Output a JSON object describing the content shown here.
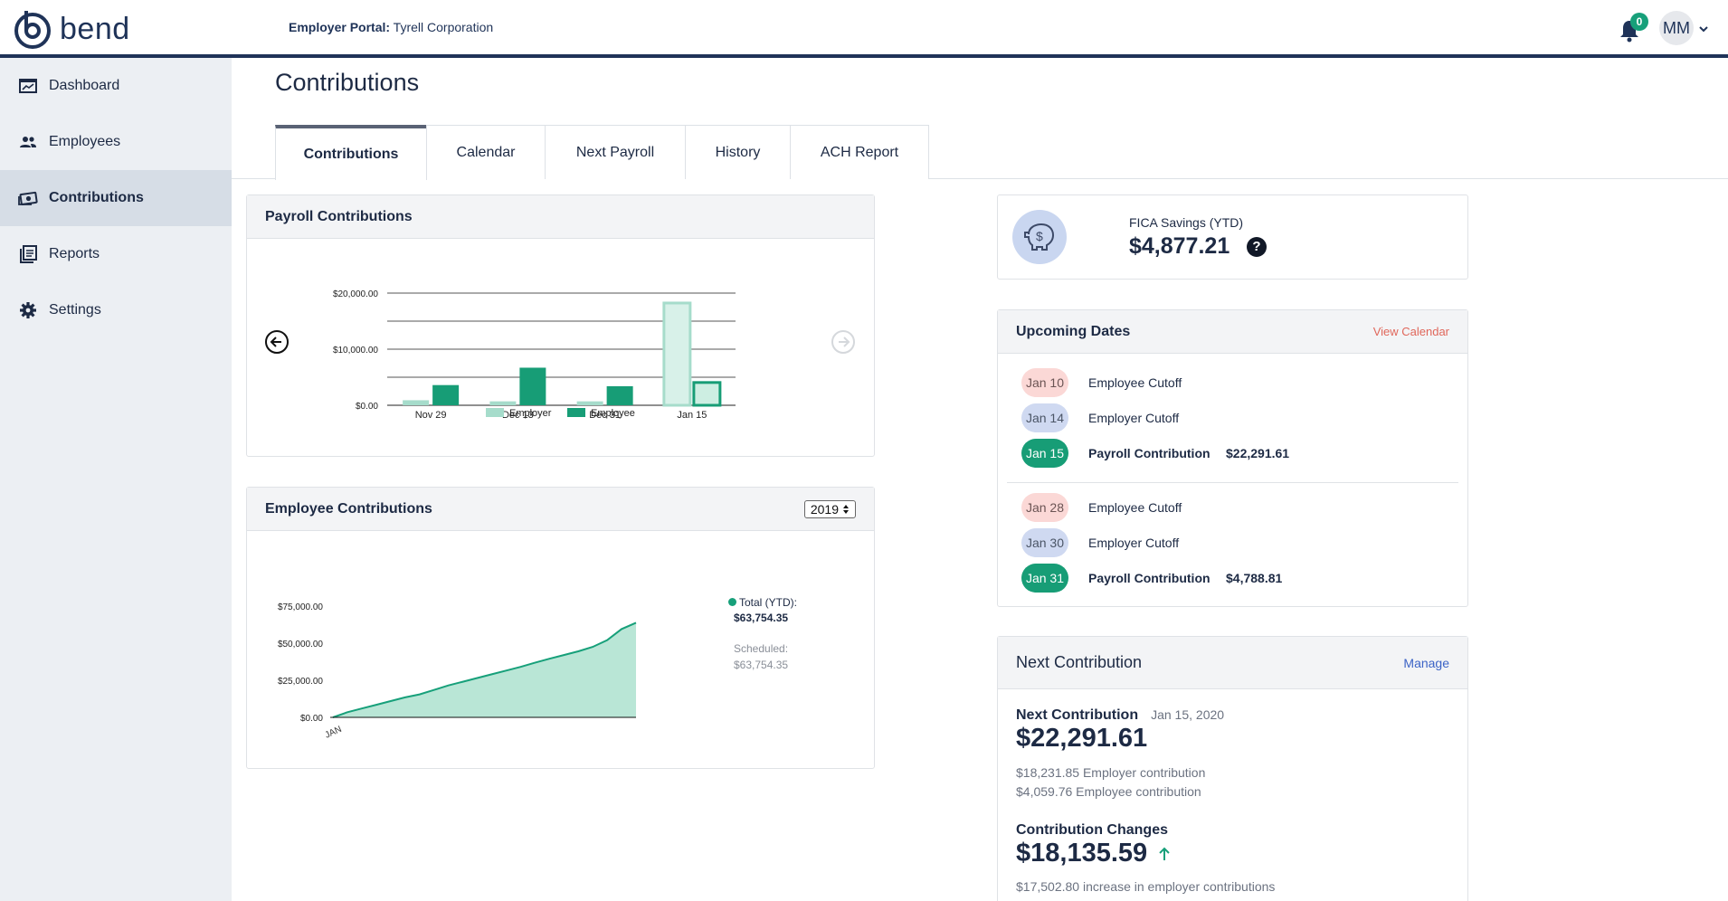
{
  "app": {
    "logo_text": "bend",
    "portal_label": "Employer Portal:",
    "company": "Tyrell Corporation"
  },
  "header": {
    "notification_count": "0",
    "avatar_initials": "MM"
  },
  "sidebar": {
    "items": [
      {
        "label": "Dashboard",
        "icon": "dashboard-icon"
      },
      {
        "label": "Employees",
        "icon": "people-icon"
      },
      {
        "label": "Contributions",
        "icon": "money-icon"
      },
      {
        "label": "Reports",
        "icon": "reports-icon"
      },
      {
        "label": "Settings",
        "icon": "gear-icon"
      }
    ],
    "active": "Contributions"
  },
  "page": {
    "title": "Contributions"
  },
  "tabs": [
    {
      "label": "Contributions"
    },
    {
      "label": "Calendar"
    },
    {
      "label": "Next Payroll"
    },
    {
      "label": "History"
    },
    {
      "label": "ACH Report"
    }
  ],
  "payroll": {
    "title": "Payroll Contributions",
    "chart_data": {
      "type": "bar",
      "categories": [
        "Nov 29",
        "Dec 13",
        "Dec 31",
        "Jan 15"
      ],
      "series": [
        {
          "name": "Employer",
          "values": [
            900,
            700,
            700,
            18231.85
          ]
        },
        {
          "name": "Employee",
          "values": [
            3600,
            6700,
            3400,
            4059.76
          ]
        }
      ],
      "ylim": [
        0,
        20000
      ],
      "yticks": [
        0,
        10000,
        20000
      ],
      "ytick_labels": [
        "$0.00",
        "$10,000.00",
        "$20,000.00"
      ],
      "legend": [
        "Employer",
        "Employee"
      ]
    }
  },
  "employee_contrib": {
    "title": "Employee Contributions",
    "year": "2019",
    "total_label": "Total (YTD):",
    "total_value": "$63,754.35",
    "scheduled_label": "Scheduled:",
    "scheduled_value": "$63,754.35",
    "chart_data": {
      "type": "area",
      "x_label": "JAN",
      "ylim": [
        0,
        75000
      ],
      "yticks": [
        0,
        25000,
        50000,
        75000
      ],
      "ytick_labels": [
        "$0.00",
        "$25,000.00",
        "$50,000.00",
        "$75,000.00"
      ],
      "values": [
        0,
        3500,
        6000,
        8500,
        11000,
        13500,
        15500,
        18500,
        21500,
        24000,
        26500,
        29000,
        31500,
        34000,
        36800,
        39500,
        42000,
        44500,
        47500,
        52000,
        59500,
        63754.35
      ]
    }
  },
  "fica": {
    "label": "FICA Savings (YTD)",
    "value": "$4,877.21"
  },
  "upcoming": {
    "title": "Upcoming Dates",
    "view_link": "View Calendar",
    "rows": [
      {
        "date": "Jan 10",
        "text": "Employee Cutoff",
        "amount": ""
      },
      {
        "date": "Jan 14",
        "text": "Employer Cutoff",
        "amount": ""
      },
      {
        "date": "Jan 15",
        "text": "Payroll Contribution",
        "amount": "$22,291.61"
      },
      {
        "date": "Jan 28",
        "text": "Employee Cutoff",
        "amount": ""
      },
      {
        "date": "Jan 30",
        "text": "Employer Cutoff",
        "amount": ""
      },
      {
        "date": "Jan 31",
        "text": "Payroll Contribution",
        "amount": "$4,788.81"
      }
    ]
  },
  "next": {
    "title": "Next Contribution",
    "manage": "Manage",
    "label": "Next Contribution",
    "date": "Jan 15, 2020",
    "amount": "$22,291.61",
    "employer_line": "$18,231.85 Employer contribution",
    "employee_line": "$4,059.76 Employee contribution",
    "changes_label": "Contribution Changes",
    "changes_amount": "$18,135.59",
    "changes_line": "$17,502.80 increase in employer contributions"
  },
  "colors": {
    "navy": "#1f3358",
    "green": "#17a07a",
    "employer": "#a6dccb",
    "employee": "#179d76"
  }
}
